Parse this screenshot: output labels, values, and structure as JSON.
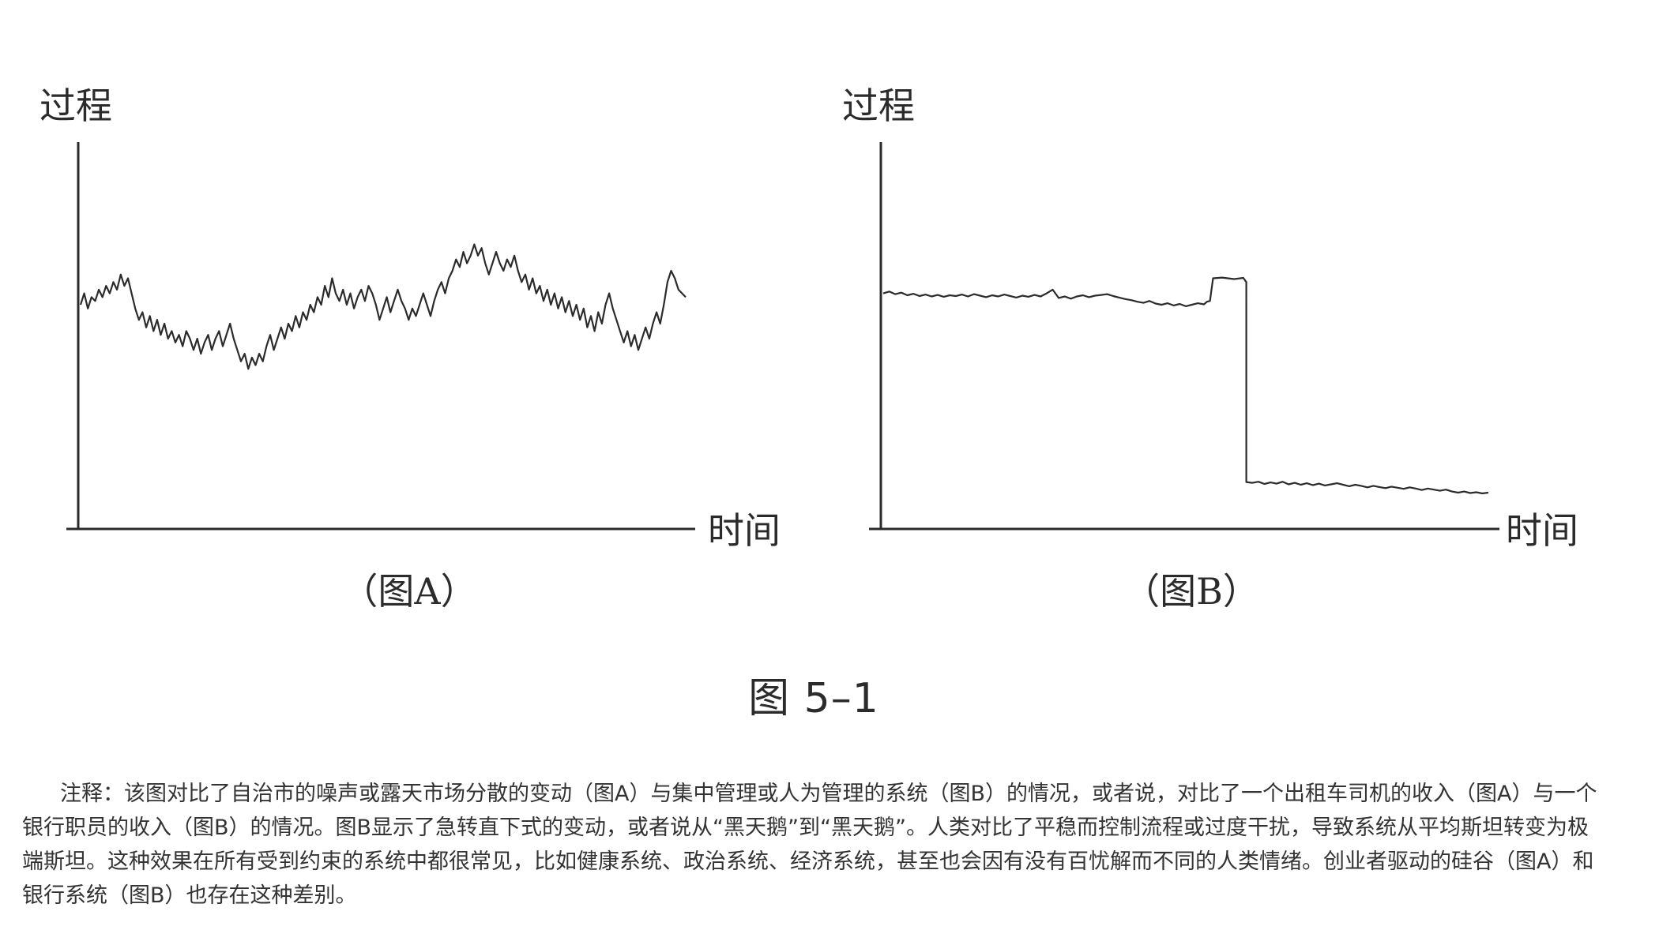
{
  "chart_data": [
    {
      "type": "line",
      "panel": "A",
      "caption": "（图A）",
      "ylabel": "过程",
      "xlabel": "时间",
      "series": [
        {
          "values": [
            0.59,
            0.62,
            0.58,
            0.61,
            0.6,
            0.63,
            0.61,
            0.64,
            0.62,
            0.65,
            0.63,
            0.67,
            0.64,
            0.66,
            0.62,
            0.58,
            0.55,
            0.57,
            0.53,
            0.56,
            0.52,
            0.55,
            0.51,
            0.54,
            0.5,
            0.52,
            0.49,
            0.51,
            0.48,
            0.52,
            0.5,
            0.47,
            0.5,
            0.46,
            0.49,
            0.51,
            0.47,
            0.5,
            0.52,
            0.48,
            0.51,
            0.54,
            0.5,
            0.47,
            0.44,
            0.46,
            0.42,
            0.45,
            0.43,
            0.46,
            0.44,
            0.48,
            0.51,
            0.47,
            0.5,
            0.53,
            0.5,
            0.54,
            0.52,
            0.56,
            0.53,
            0.57,
            0.55,
            0.59,
            0.57,
            0.61,
            0.59,
            0.64,
            0.61,
            0.66,
            0.62,
            0.6,
            0.63,
            0.59,
            0.62,
            0.58,
            0.61,
            0.63,
            0.6,
            0.64,
            0.62,
            0.59,
            0.55,
            0.58,
            0.61,
            0.57,
            0.6,
            0.63,
            0.6,
            0.58,
            0.55,
            0.58,
            0.56,
            0.59,
            0.62,
            0.59,
            0.56,
            0.6,
            0.63,
            0.65,
            0.62,
            0.66,
            0.68,
            0.71,
            0.69,
            0.73,
            0.7,
            0.72,
            0.75,
            0.72,
            0.74,
            0.7,
            0.67,
            0.7,
            0.73,
            0.7,
            0.68,
            0.71,
            0.69,
            0.72,
            0.68,
            0.65,
            0.67,
            0.63,
            0.66,
            0.62,
            0.64,
            0.6,
            0.63,
            0.59,
            0.62,
            0.58,
            0.61,
            0.57,
            0.6,
            0.56,
            0.59,
            0.55,
            0.58,
            0.53,
            0.56,
            0.52,
            0.57,
            0.54,
            0.59,
            0.62,
            0.58,
            0.55,
            0.52,
            0.49,
            0.52,
            0.48,
            0.51,
            0.47,
            0.5,
            0.53,
            0.5,
            0.54,
            0.57,
            0.54,
            0.59,
            0.65,
            0.68,
            0.66,
            0.63,
            0.62,
            0.61
          ]
        }
      ],
      "xlim": [
        0,
        1
      ],
      "ylim": [
        0,
        1
      ]
    },
    {
      "type": "line",
      "panel": "B",
      "caption": "（图B）",
      "ylabel": "过程",
      "xlabel": "时间",
      "series": [
        {
          "x": [
            0.0,
            0.01,
            0.02,
            0.03,
            0.04,
            0.05,
            0.06,
            0.07,
            0.08,
            0.09,
            0.1,
            0.11,
            0.12,
            0.13,
            0.14,
            0.15,
            0.16,
            0.17,
            0.18,
            0.19,
            0.2,
            0.21,
            0.22,
            0.23,
            0.24,
            0.25,
            0.26,
            0.27,
            0.28,
            0.29,
            0.3,
            0.31,
            0.32,
            0.33,
            0.34,
            0.35,
            0.36,
            0.37,
            0.38,
            0.39,
            0.4,
            0.41,
            0.42,
            0.43,
            0.44,
            0.45,
            0.46,
            0.47,
            0.48,
            0.49,
            0.5,
            0.51,
            0.52,
            0.53,
            0.535,
            0.54,
            0.545,
            0.56,
            0.58,
            0.595,
            0.6,
            0.6,
            0.61,
            0.62,
            0.63,
            0.64,
            0.65,
            0.66,
            0.67,
            0.68,
            0.69,
            0.7,
            0.71,
            0.72,
            0.73,
            0.74,
            0.75,
            0.76,
            0.77,
            0.78,
            0.79,
            0.8,
            0.81,
            0.82,
            0.83,
            0.84,
            0.85,
            0.86,
            0.87,
            0.88,
            0.89,
            0.9,
            0.91,
            0.92,
            0.93,
            0.94,
            0.95,
            0.96,
            0.97,
            0.98,
            0.99,
            1.0
          ],
          "values": [
            0.62,
            0.625,
            0.618,
            0.622,
            0.615,
            0.619,
            0.613,
            0.617,
            0.612,
            0.616,
            0.611,
            0.615,
            0.613,
            0.617,
            0.612,
            0.618,
            0.614,
            0.61,
            0.615,
            0.612,
            0.617,
            0.613,
            0.609,
            0.614,
            0.611,
            0.616,
            0.612,
            0.62,
            0.63,
            0.608,
            0.612,
            0.606,
            0.612,
            0.615,
            0.61,
            0.614,
            0.616,
            0.618,
            0.613,
            0.609,
            0.605,
            0.602,
            0.598,
            0.595,
            0.6,
            0.593,
            0.59,
            0.594,
            0.588,
            0.592,
            0.586,
            0.59,
            0.594,
            0.591,
            0.598,
            0.6,
            0.66,
            0.662,
            0.658,
            0.661,
            0.65,
            0.12,
            0.118,
            0.121,
            0.115,
            0.119,
            0.116,
            0.121,
            0.114,
            0.118,
            0.113,
            0.117,
            0.112,
            0.116,
            0.111,
            0.114,
            0.117,
            0.113,
            0.109,
            0.113,
            0.11,
            0.106,
            0.11,
            0.107,
            0.104,
            0.108,
            0.105,
            0.102,
            0.106,
            0.103,
            0.099,
            0.103,
            0.1,
            0.097,
            0.1,
            0.095,
            0.092,
            0.095,
            0.091,
            0.093,
            0.09,
            0.092
          ]
        }
      ],
      "xlim": [
        0,
        1
      ],
      "ylim": [
        0,
        1
      ]
    }
  ],
  "figure_title": "图 5–1",
  "note": "注释：该图对比了自治市的噪声或露天市场分散的变动（图A）与集中管理或人为管理的系统（图B）的情况，或者说，对比了一个出租车司机的收入（图A）与一个银行职员的收入（图B）的情况。图B显示了急转直下式的变动，或者说从“黑天鹅”到“黑天鹅”。人类对比了平稳而控制流程或过度干扰，导致系统从平均斯坦转变为极端斯坦。这种效果在所有受到约束的系统中都很常见，比如健康系统、政治系统、经济系统，甚至也会因有没有百忧解而不同的人类情绪。创业者驱动的硅谷（图A）和银行系统（图B）也存在这种差别。",
  "colors": {
    "ink": "#2b2b2b",
    "text": "#333333",
    "background": "#ffffff"
  }
}
